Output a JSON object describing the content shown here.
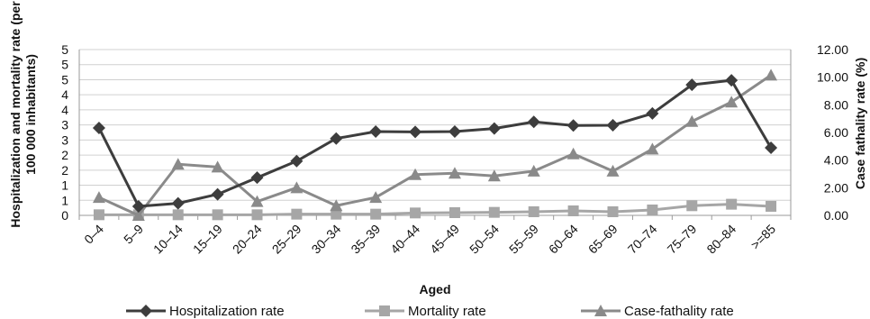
{
  "chart_data": {
    "type": "line",
    "categories": [
      "0–4",
      "5–9",
      "10–14",
      "15–19",
      "20–24",
      "25–29",
      "30–34",
      "35–39",
      "40–44",
      "45–49",
      "50–54",
      "55–59",
      "60–64",
      "65–69",
      "70–74",
      "75–79",
      "80–84",
      ">=85"
    ],
    "xlabel": "Aged",
    "ylabel_left": "Hospitalization and mortality rate (per 100 000 inhabitants)",
    "ylabel_right": "Case fathality rate (%)",
    "left_axis": {
      "range": [
        0,
        5.5
      ],
      "tick_values": [
        0,
        0.5,
        1,
        1.5,
        2,
        2.5,
        3,
        3.5,
        4,
        4.5,
        5,
        5.5
      ],
      "tick_labels": [
        "0",
        "1",
        "1",
        "2",
        "2",
        "3",
        "3",
        "4",
        "4",
        "5",
        "5",
        "5"
      ]
    },
    "right_axis": {
      "range": [
        0,
        12
      ],
      "tick_values": [
        0,
        2,
        4,
        6,
        8,
        10,
        12
      ],
      "tick_labels": [
        "0.00",
        "2.00",
        "4.00",
        "6.00",
        "8.00",
        "10.00",
        "12.00"
      ]
    },
    "grid": true,
    "legend_position": "bottom",
    "series": [
      {
        "name": "Hospitalization rate",
        "axis": "left",
        "marker": "diamond",
        "color": "#3d3d3d",
        "values": [
          2.9,
          0.3,
          0.4,
          0.7,
          1.25,
          1.8,
          2.55,
          2.78,
          2.77,
          2.78,
          2.88,
          3.1,
          2.98,
          2.99,
          3.38,
          4.33,
          4.48,
          2.24
        ]
      },
      {
        "name": "Mortality rate",
        "axis": "left",
        "marker": "square",
        "color": "#a6a6a6",
        "values": [
          0.02,
          0.02,
          0.02,
          0.02,
          0.02,
          0.04,
          0.04,
          0.04,
          0.08,
          0.09,
          0.1,
          0.12,
          0.15,
          0.12,
          0.18,
          0.32,
          0.37,
          0.3
        ]
      },
      {
        "name": "Case-fathality rate",
        "axis": "right",
        "marker": "triangle",
        "color": "#8a8a8a",
        "values": [
          1.3,
          0.0,
          3.7,
          3.5,
          1.0,
          2.0,
          0.7,
          1.3,
          2.95,
          3.05,
          2.85,
          3.2,
          4.45,
          3.2,
          4.8,
          6.8,
          8.2,
          10.15
        ]
      }
    ]
  }
}
